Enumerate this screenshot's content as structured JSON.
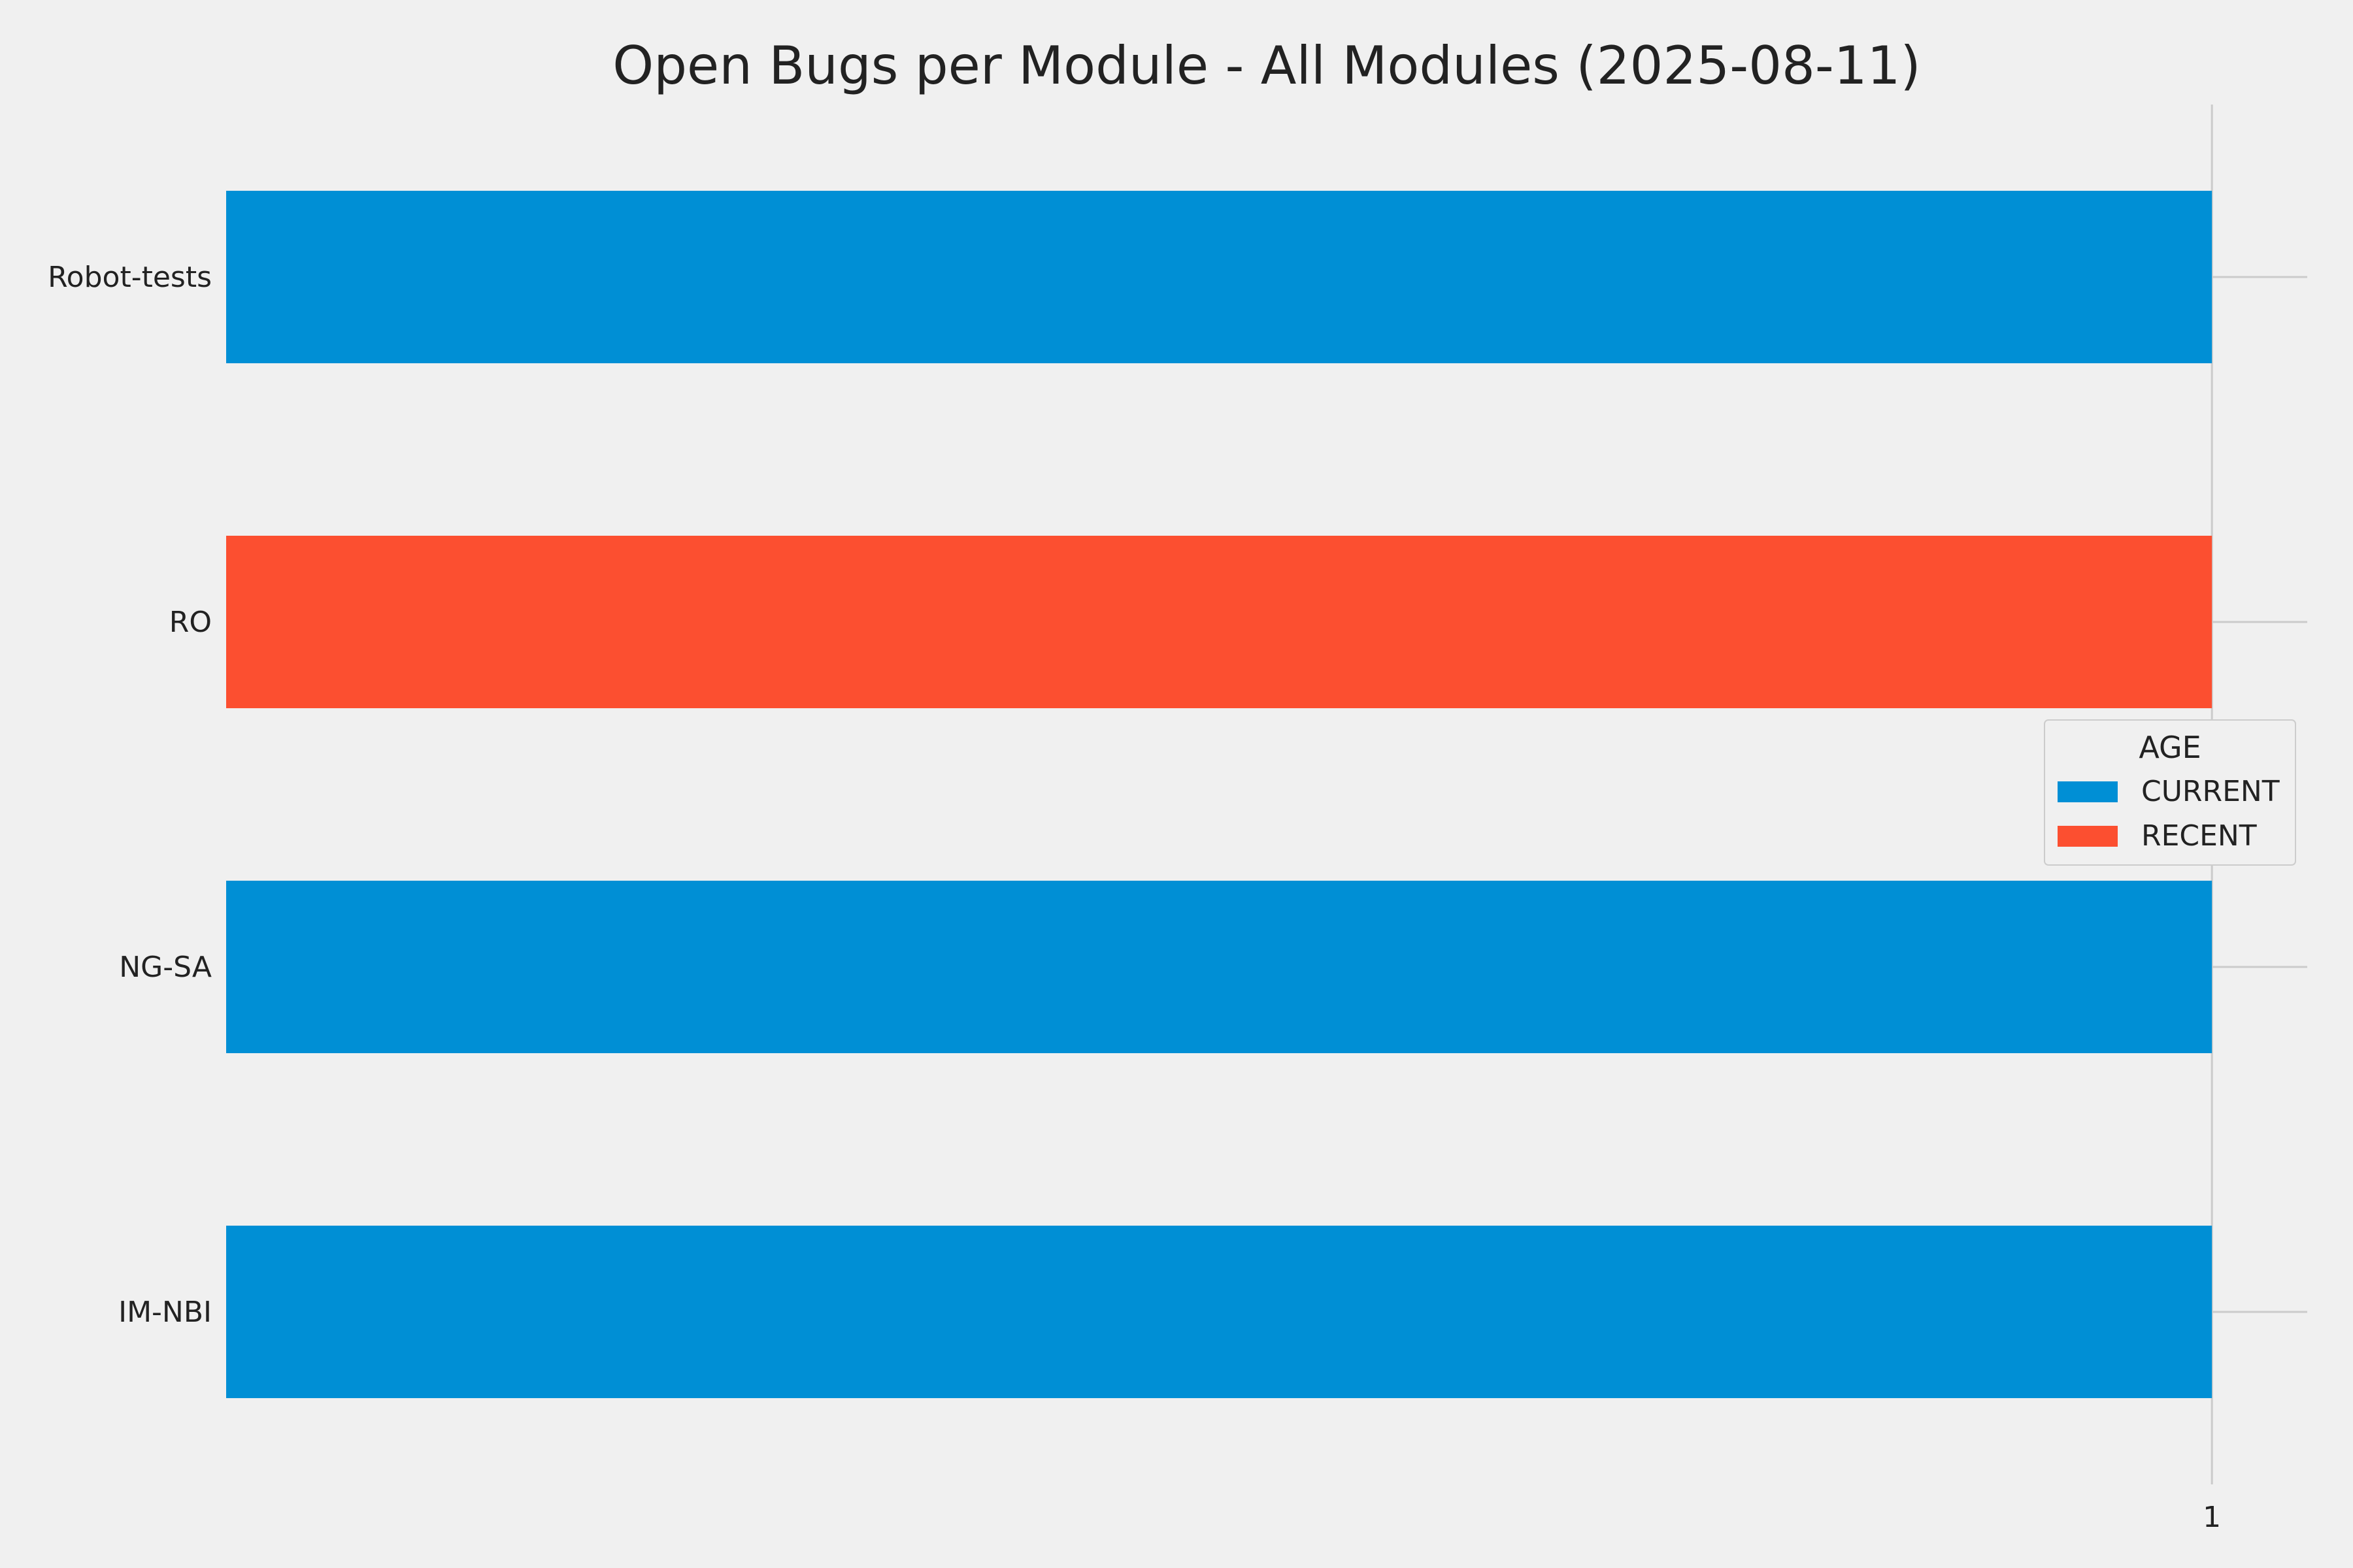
{
  "chart_data": {
    "type": "bar",
    "orientation": "horizontal",
    "stacked": true,
    "title": "Open Bugs per Module - All Modules (2025-08-11)",
    "xlabel": "",
    "ylabel": "",
    "categories": [
      "Robot-tests",
      "RO",
      "NG-SA",
      "IM-NBI"
    ],
    "series": [
      {
        "name": "CURRENT",
        "color": "#008fd5",
        "values": [
          1,
          0,
          1,
          1
        ]
      },
      {
        "name": "RECENT",
        "color": "#fc4f30",
        "values": [
          0,
          1,
          0,
          0
        ]
      }
    ],
    "x_ticks": [
      1
    ],
    "x_tick_labels": [
      "1"
    ],
    "xlim": [
      0,
      1.048
    ],
    "legend": {
      "title": "AGE",
      "placement": "center-right"
    },
    "grid": true
  },
  "colors": {
    "background": "#f0f0f0",
    "grid": "#cbcbcb",
    "text": "#222222"
  }
}
